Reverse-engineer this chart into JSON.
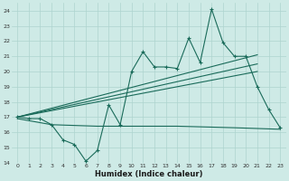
{
  "xlabel": "Humidex (Indice chaleur)",
  "xlim": [
    -0.5,
    23.5
  ],
  "ylim": [
    14,
    24.5
  ],
  "yticks": [
    14,
    15,
    16,
    17,
    18,
    19,
    20,
    21,
    22,
    23,
    24
  ],
  "xticks": [
    0,
    1,
    2,
    3,
    4,
    5,
    6,
    7,
    8,
    9,
    10,
    11,
    12,
    13,
    14,
    15,
    16,
    17,
    18,
    19,
    20,
    21,
    22,
    23
  ],
  "bg_color": "#ceeae6",
  "grid_color": "#aed4ce",
  "line_color": "#1a6b5a",
  "line1_x": [
    0,
    1,
    2,
    3,
    4,
    5,
    6,
    7,
    8,
    9,
    10,
    11,
    12,
    13,
    14,
    15,
    16,
    17,
    18,
    19,
    20,
    21,
    22,
    23
  ],
  "line1_y": [
    17.0,
    16.9,
    16.9,
    16.5,
    15.5,
    15.2,
    14.1,
    14.8,
    17.8,
    16.5,
    20.0,
    21.3,
    20.3,
    20.3,
    20.2,
    22.2,
    20.6,
    24.1,
    21.9,
    21.0,
    21.0,
    19.0,
    17.5,
    16.3
  ],
  "line2_x": [
    0,
    3,
    7,
    14,
    19,
    23
  ],
  "line2_y": [
    16.9,
    16.5,
    16.4,
    16.4,
    16.3,
    16.2
  ],
  "line3_x": [
    0,
    21
  ],
  "line3_y": [
    17.0,
    21.1
  ],
  "line4_x": [
    0,
    21
  ],
  "line4_y": [
    17.0,
    20.5
  ],
  "line5_x": [
    0,
    21
  ],
  "line5_y": [
    17.0,
    20.0
  ]
}
